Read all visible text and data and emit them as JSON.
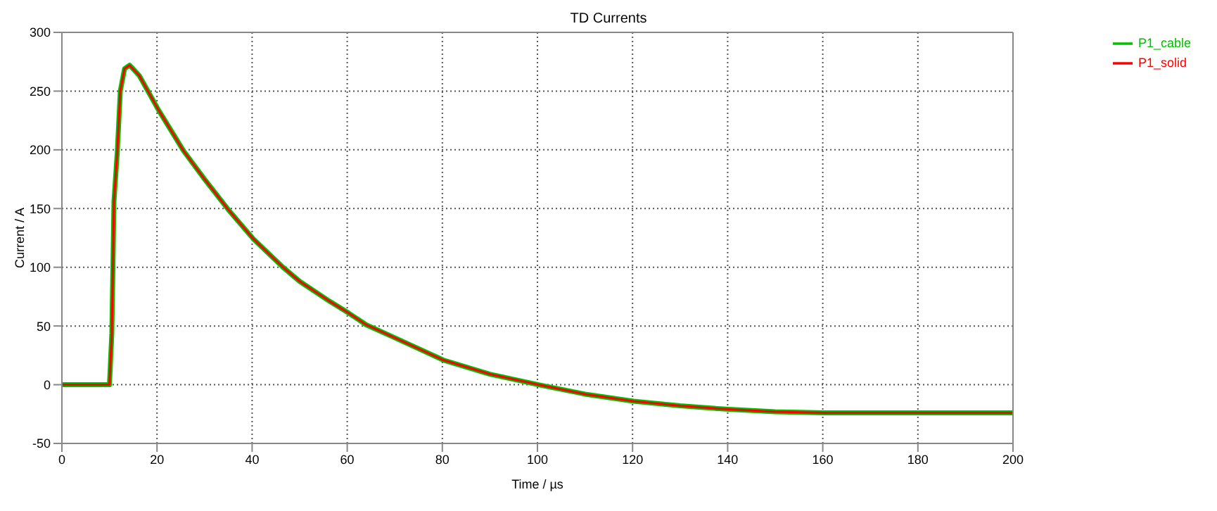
{
  "chart_data": {
    "type": "line",
    "title": "TD Currents",
    "xlabel": "Time / µs",
    "ylabel": "Current / A",
    "x": [
      0,
      10,
      10.5,
      10.95,
      11.66,
      12.28,
      13.17,
      14.24,
      16.3,
      20.3,
      25.6,
      30,
      35,
      40.3,
      46.5,
      50,
      56.3,
      60.3,
      64,
      70,
      80.2,
      90,
      100.2,
      110,
      120.2,
      130,
      140.3,
      150,
      160.3,
      180,
      200
    ],
    "series": [
      {
        "name": "P1_cable",
        "color": "#00c000",
        "values": [
          0,
          0,
          44,
          156,
          199,
          250,
          269,
          272,
          263,
          234,
          199,
          175,
          149,
          124,
          100,
          88,
          71,
          61,
          51,
          40,
          21,
          9,
          0,
          -8,
          -14,
          -18,
          -21,
          -23,
          -24,
          -24,
          -24
        ]
      },
      {
        "name": "P1_solid",
        "color": "#ff0000",
        "values": [
          0,
          0,
          44,
          156,
          199,
          250,
          269,
          272,
          263,
          234,
          199,
          175,
          149,
          124,
          100,
          88,
          71,
          61,
          51,
          40,
          21,
          9,
          0,
          -8,
          -14,
          -18,
          -21,
          -23,
          -24,
          -24,
          -24
        ]
      }
    ],
    "xlim": [
      0,
      200
    ],
    "xticks": [
      0,
      20,
      40,
      60,
      80,
      100,
      120,
      140,
      160,
      180,
      200
    ],
    "ylim": [
      -50,
      300
    ],
    "yticks": [
      -50,
      0,
      50,
      100,
      150,
      200,
      250,
      300
    ],
    "grid": true,
    "legend": "top right",
    "marker": "none",
    "line_style": "solid"
  }
}
